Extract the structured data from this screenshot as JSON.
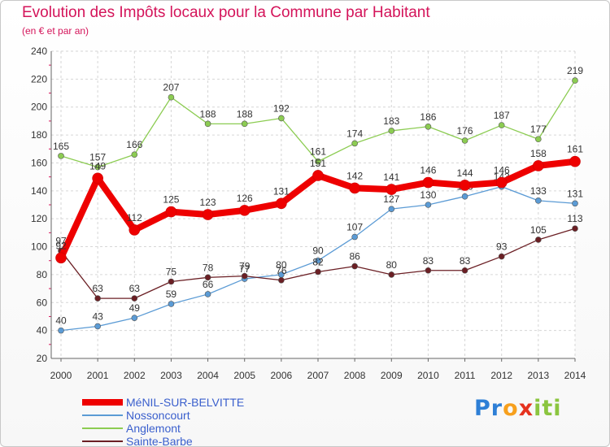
{
  "title": "Evolution des Impôts locaux pour la Commune par Habitant",
  "subtitle": "(en € et par an)",
  "brand": {
    "letters": [
      "P",
      "r",
      "o",
      "x",
      "i",
      "t",
      "i"
    ],
    "colors": [
      "#2e7fd6",
      "#2e7fd6",
      "#f7a01d",
      "#e5321e",
      "#8bc53f",
      "#8bc53f",
      "#8bc53f"
    ]
  },
  "chart_data": {
    "type": "line",
    "title": "Evolution des Impôts locaux pour la Commune par Habitant",
    "subtitle": "(en € et par an)",
    "xlabel": "",
    "ylabel": "",
    "categories": [
      "2000",
      "2001",
      "2002",
      "2003",
      "2004",
      "2005",
      "2006",
      "2007",
      "2008",
      "2009",
      "2010",
      "2011",
      "2012",
      "2013",
      "2014"
    ],
    "ylim": [
      20,
      240
    ],
    "yticks": [
      20,
      40,
      60,
      80,
      100,
      120,
      140,
      160,
      180,
      200,
      220,
      240
    ],
    "grid": true,
    "legend_position": "bottom-left",
    "series": [
      {
        "name": "Anglemont",
        "color": "#8ccc52",
        "values": [
          165,
          157,
          166,
          207,
          188,
          188,
          192,
          161,
          174,
          183,
          186,
          176,
          187,
          177,
          219
        ]
      },
      {
        "name": "Nossoncourt",
        "color": "#5b9bd5",
        "values": [
          40,
          43,
          49,
          59,
          66,
          77,
          80,
          90,
          107,
          127,
          130,
          136,
          143,
          133,
          131
        ]
      },
      {
        "name": "Sainte-Barbe",
        "color": "#6b1f24",
        "values": [
          97,
          63,
          63,
          75,
          78,
          79,
          76,
          82,
          86,
          80,
          83,
          83,
          93,
          105,
          113
        ]
      },
      {
        "name": "MéNIL-SUR-BELVITTE",
        "color": "#ee0000",
        "values": [
          92,
          149,
          112,
          125,
          123,
          126,
          131,
          151,
          142,
          141,
          146,
          144,
          146,
          158,
          161
        ]
      }
    ],
    "legend_order": [
      "MéNIL-SUR-BELVITTE",
      "Nossoncourt",
      "Anglemont",
      "Sainte-Barbe"
    ]
  }
}
